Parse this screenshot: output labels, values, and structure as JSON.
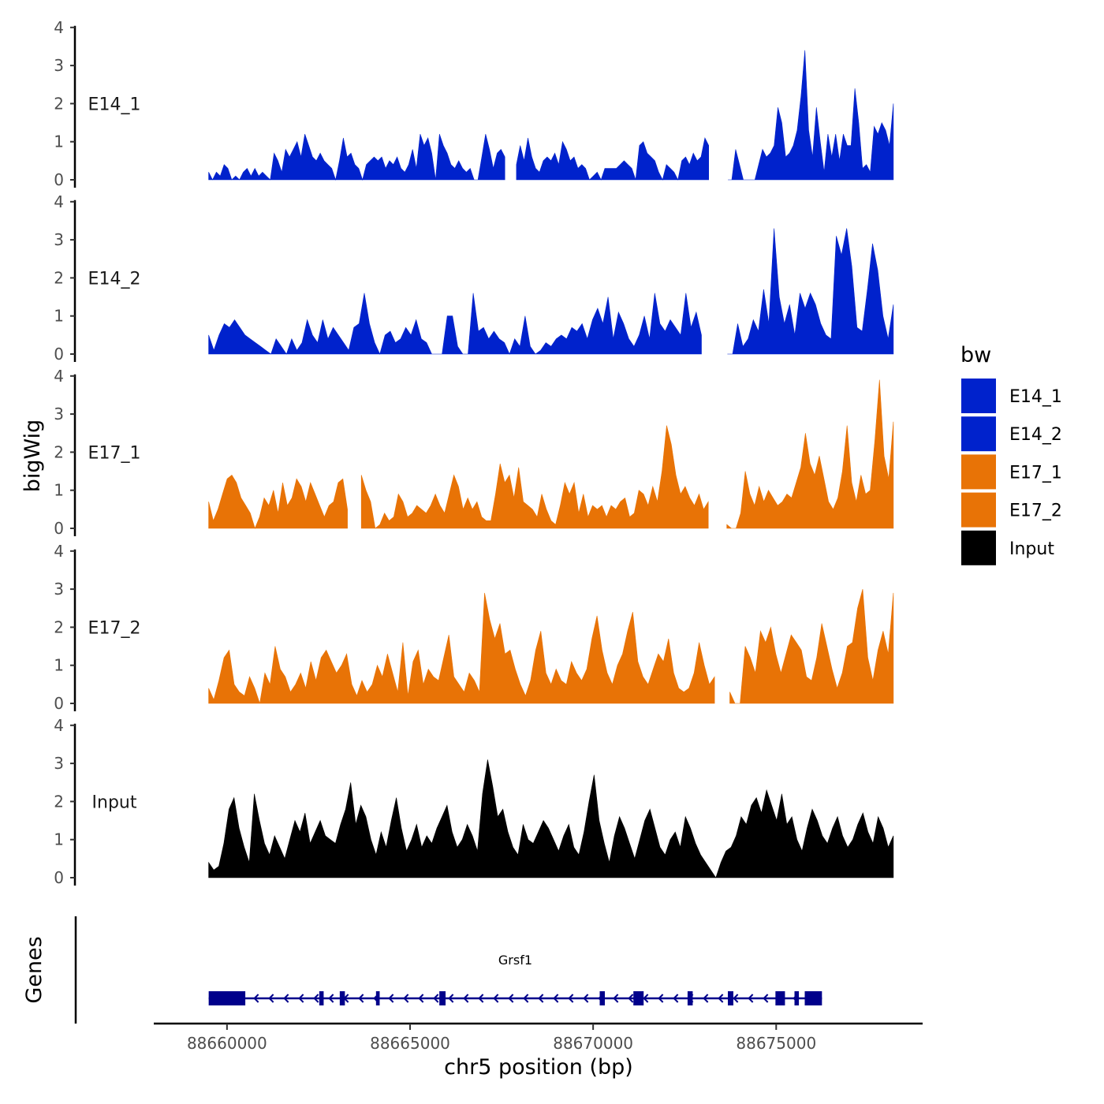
{
  "chart_data": {
    "type": "area",
    "xlabel": "chr5 position (bp)",
    "ylabel": "bigWig",
    "genes_label": "Genes",
    "x_range": [
      88659500,
      88678200
    ],
    "xlim": [
      88658000,
      88679000
    ],
    "x_ticks": [
      {
        "value": 88660000,
        "label": "88660000"
      },
      {
        "value": 88665000,
        "label": "88665000"
      },
      {
        "value": 88670000,
        "label": "88670000"
      },
      {
        "value": 88675000,
        "label": "88675000"
      }
    ],
    "ylim": [
      0,
      4
    ],
    "y_ticks": [
      {
        "value": 0,
        "label": "0"
      },
      {
        "value": 1,
        "label": "1"
      },
      {
        "value": 2,
        "label": "2"
      },
      {
        "value": 3,
        "label": "3"
      },
      {
        "value": 4,
        "label": "4"
      }
    ],
    "legend": {
      "title": "bw",
      "entries": [
        {
          "label": "E14_1",
          "color": "#0022CC"
        },
        {
          "label": "E14_2",
          "color": "#0022CC"
        },
        {
          "label": "E17_1",
          "color": "#E87306"
        },
        {
          "label": "E17_2",
          "color": "#E87306"
        },
        {
          "label": "Input",
          "color": "#000000"
        }
      ]
    },
    "series": [
      {
        "name": "E14_1",
        "color": "#0022CC",
        "values": [
          0.2,
          0,
          0.2,
          0.1,
          0.4,
          0.3,
          0,
          0.1,
          0,
          0.2,
          0.3,
          0.1,
          0.3,
          0.1,
          0.2,
          0.1,
          0,
          0.7,
          0.5,
          0.2,
          0.8,
          0.6,
          0.8,
          1.0,
          0.6,
          1.2,
          0.9,
          0.6,
          0.5,
          0.7,
          0.5,
          0.4,
          0.3,
          0,
          0.5,
          1.1,
          0.6,
          0.7,
          0.4,
          0.3,
          0,
          0.4,
          0.5,
          0.6,
          0.5,
          0.6,
          0.3,
          0.5,
          0.4,
          0.6,
          0.3,
          0.2,
          0.4,
          0.8,
          0.3,
          1.2,
          0.9,
          1.1,
          0.7,
          0,
          1.2,
          0.9,
          0.7,
          0.4,
          0.3,
          0.5,
          0.3,
          0.2,
          0.3,
          0,
          0,
          0.6,
          1.2,
          0.8,
          0.3,
          0.7,
          0.8,
          0.6,
          0.7,
          0.5,
          0.4,
          0.9,
          0.5,
          1.1,
          0.6,
          0.3,
          0.2,
          0.5,
          0.6,
          0.5,
          0.7,
          0.4,
          1.0,
          0.8,
          0.5,
          0.6,
          0.3,
          0.4,
          0.3,
          0,
          0.1,
          0.2,
          0,
          0.3,
          0.3,
          0.3,
          0.3,
          0.4,
          0.5,
          0.4,
          0.3,
          0,
          0.9,
          1.0,
          0.7,
          0.6,
          0.5,
          0.2,
          0,
          0.4,
          0.3,
          0.2,
          0,
          0.5,
          0.6,
          0.4,
          0.7,
          0.5,
          0.6,
          1.1,
          0.9,
          0.6,
          0.5,
          0.7,
          0.3,
          0,
          0,
          0.8,
          0.4,
          0,
          0,
          0,
          0,
          0.4,
          0.8,
          0.6,
          0.7,
          0.9,
          1.9,
          1.5,
          0.6,
          0.7,
          0.9,
          1.3,
          2.2,
          3.4,
          1.3,
          0.6,
          1.9,
          1.0,
          0.2,
          1.2,
          0.6,
          1.2,
          0.5,
          1.2,
          0.9,
          0.9,
          2.4,
          1.5,
          0.3,
          0.4,
          0.2,
          1.4,
          1.2,
          1.5,
          1.3,
          0.9,
          2.0
        ]
      },
      {
        "name": "E14_2",
        "color": "#0022CC",
        "values": [
          0.5,
          0.1,
          0.5,
          0.8,
          0.7,
          0.9,
          0.7,
          0.5,
          0.4,
          0.3,
          0.2,
          0.1,
          0,
          0.4,
          0.2,
          0,
          0.4,
          0.1,
          0.3,
          0.9,
          0.5,
          0.3,
          0.9,
          0.4,
          0.7,
          0.5,
          0.3,
          0.1,
          0.7,
          0.8,
          1.6,
          0.8,
          0.3,
          0,
          0.5,
          0.6,
          0.3,
          0.4,
          0.7,
          0.5,
          0.9,
          0.4,
          0.3,
          0,
          0,
          0,
          1.0,
          1.0,
          0.2,
          0,
          0,
          1.6,
          0.6,
          0.7,
          0.4,
          0.6,
          0.4,
          0.3,
          0,
          0.4,
          0.2,
          1.0,
          0.2,
          0,
          0.1,
          0.3,
          0.2,
          0.4,
          0.5,
          0.4,
          0.7,
          0.6,
          0.8,
          0.4,
          0.9,
          1.2,
          0.8,
          1.5,
          0.4,
          1.1,
          0.8,
          0.4,
          0.2,
          0.5,
          1.0,
          0.4,
          1.6,
          0.8,
          0.6,
          0.9,
          0.7,
          0.5,
          1.6,
          0.7,
          1.1,
          0.5,
          0.8,
          0.3,
          0,
          0,
          0,
          0,
          0.8,
          0.2,
          0.4,
          0.9,
          0.6,
          1.7,
          0.8,
          3.3,
          1.5,
          0.8,
          1.3,
          0.5,
          1.6,
          1.2,
          1.6,
          1.3,
          0.8,
          0.5,
          0.4,
          3.1,
          2.6,
          3.3,
          2.3,
          0.7,
          0.6,
          1.7,
          2.9,
          2.2,
          1.0,
          0.4,
          1.3
        ]
      },
      {
        "name": "E17_1",
        "color": "#E87306",
        "values": [
          0.7,
          0.2,
          0.5,
          0.9,
          1.3,
          1.4,
          1.2,
          0.8,
          0.6,
          0.4,
          0,
          0.3,
          0.8,
          0.6,
          1.0,
          0.4,
          1.2,
          0.6,
          0.8,
          1.3,
          1.1,
          0.7,
          1.2,
          0.9,
          0.6,
          0.3,
          0.6,
          0.7,
          1.2,
          1.3,
          0.5,
          0.6,
          0.7,
          1.4,
          1.0,
          0.7,
          0,
          0.1,
          0.4,
          0.2,
          0.3,
          0.9,
          0.7,
          0.3,
          0.4,
          0.6,
          0.5,
          0.4,
          0.6,
          0.9,
          0.6,
          0.4,
          0.9,
          1.4,
          1.1,
          0.5,
          0.8,
          0.5,
          0.7,
          0.3,
          0.2,
          0.2,
          0.9,
          1.7,
          1.2,
          1.4,
          0.8,
          1.6,
          0.7,
          0.6,
          0.5,
          0.3,
          0.9,
          0.5,
          0.2,
          0.1,
          0.6,
          1.2,
          0.9,
          1.2,
          0.4,
          0.9,
          0.3,
          0.6,
          0.5,
          0.6,
          0.3,
          0.6,
          0.5,
          0.7,
          0.8,
          0.3,
          0.4,
          1.0,
          0.9,
          0.6,
          1.1,
          0.7,
          1.5,
          2.7,
          2.2,
          1.4,
          0.9,
          1.1,
          0.8,
          0.6,
          0.9,
          0.5,
          0.7,
          0.6,
          0.3,
          0.4,
          0.1,
          0,
          0,
          0.4,
          1.5,
          0.9,
          0.6,
          1.1,
          0.7,
          1.0,
          0.8,
          0.6,
          0.7,
          0.9,
          0.8,
          1.2,
          1.6,
          2.5,
          1.7,
          1.4,
          1.9,
          1.3,
          0.7,
          0.5,
          0.8,
          1.5,
          2.7,
          1.2,
          0.7,
          1.4,
          0.9,
          1.0,
          2.3,
          3.9,
          1.9,
          1.3,
          2.8
        ]
      },
      {
        "name": "E17_2",
        "color": "#E87306",
        "values": [
          0.4,
          0.1,
          0.6,
          1.2,
          1.4,
          0.5,
          0.3,
          0.2,
          0.7,
          0.4,
          0,
          0.8,
          0.5,
          1.5,
          0.9,
          0.7,
          0.3,
          0.5,
          0.8,
          0.4,
          1.1,
          0.6,
          1.2,
          1.4,
          1.1,
          0.8,
          1.0,
          1.3,
          0.5,
          0.2,
          0.6,
          0.3,
          0.5,
          1.0,
          0.7,
          1.3,
          0.8,
          0.3,
          1.6,
          0.2,
          1.1,
          1.4,
          0.5,
          0.9,
          0.7,
          0.6,
          1.2,
          1.8,
          0.7,
          0.5,
          0.3,
          0.8,
          0.6,
          0.3,
          2.9,
          2.2,
          1.7,
          2.1,
          1.3,
          1.4,
          0.9,
          0.5,
          0.2,
          0.6,
          1.4,
          1.9,
          0.8,
          0.5,
          0.9,
          0.6,
          0.5,
          1.1,
          0.8,
          0.6,
          0.9,
          1.7,
          2.3,
          1.4,
          0.8,
          0.5,
          1.0,
          1.3,
          1.9,
          2.4,
          1.1,
          0.7,
          0.5,
          0.9,
          1.3,
          1.1,
          1.7,
          0.8,
          0.4,
          0.3,
          0.4,
          0.8,
          1.6,
          1.0,
          0.5,
          0.7,
          0.6,
          0.4,
          0.3,
          0,
          0,
          1.5,
          1.2,
          0.8,
          1.9,
          1.6,
          2.0,
          1.3,
          0.8,
          1.3,
          1.8,
          1.6,
          1.4,
          0.7,
          0.6,
          1.2,
          2.1,
          1.5,
          0.9,
          0.4,
          0.8,
          1.5,
          1.6,
          2.5,
          3.0,
          1.2,
          0.6,
          1.4,
          1.9,
          1.3,
          2.9
        ]
      },
      {
        "name": "Input",
        "color": "#000000",
        "values": [
          0.4,
          0.2,
          0.3,
          0.9,
          1.8,
          2.1,
          1.3,
          0.8,
          0.4,
          2.2,
          1.5,
          0.9,
          0.6,
          1.1,
          0.8,
          0.5,
          1.0,
          1.5,
          1.2,
          1.7,
          0.9,
          1.2,
          1.5,
          1.1,
          1.0,
          0.9,
          1.4,
          1.8,
          2.5,
          1.4,
          1.9,
          1.6,
          1.0,
          0.6,
          1.2,
          0.8,
          1.5,
          2.1,
          1.3,
          0.7,
          1.0,
          1.4,
          0.8,
          1.1,
          0.9,
          1.3,
          1.6,
          1.9,
          1.2,
          0.8,
          1.0,
          1.4,
          1.1,
          0.7,
          2.2,
          3.1,
          2.4,
          1.6,
          1.8,
          1.2,
          0.8,
          0.6,
          1.4,
          1.0,
          0.9,
          1.2,
          1.5,
          1.3,
          1.0,
          0.7,
          1.1,
          1.4,
          0.8,
          0.6,
          1.2,
          2.0,
          2.7,
          1.5,
          0.9,
          0.4,
          1.1,
          1.6,
          1.3,
          0.9,
          0.5,
          1.0,
          1.5,
          1.8,
          1.3,
          0.8,
          0.6,
          1.0,
          1.2,
          0.8,
          1.6,
          1.3,
          0.9,
          0.6,
          0.4,
          0.2,
          0,
          0.4,
          0.7,
          0.8,
          1.1,
          1.6,
          1.4,
          1.9,
          2.1,
          1.7,
          2.3,
          1.9,
          1.5,
          2.2,
          1.4,
          1.6,
          1.0,
          0.7,
          1.3,
          1.8,
          1.5,
          1.1,
          0.9,
          1.3,
          1.6,
          1.1,
          0.8,
          1.0,
          1.4,
          1.7,
          1.2,
          0.9,
          1.6,
          1.3,
          0.8,
          1.1
        ]
      }
    ],
    "gaps": {
      "E14_1": [
        [
          88667650,
          88667800
        ],
        [
          88673200,
          88673650
        ]
      ],
      "E14_2": [
        [
          88673000,
          88673550
        ]
      ],
      "E17_1": [
        [
          88663400,
          88663550
        ],
        [
          88673250,
          88673650
        ]
      ],
      "E17_2": [
        [
          88673350,
          88673650
        ]
      ],
      "Input": []
    },
    "genes": [
      {
        "name": "Grsf1",
        "strand": "-",
        "start": 88659500,
        "end": 88676250,
        "exons": [
          {
            "start": 88659500,
            "end": 88660500
          },
          {
            "start": 88662520,
            "end": 88662640
          },
          {
            "start": 88663080,
            "end": 88663220
          },
          {
            "start": 88664070,
            "end": 88664170
          },
          {
            "start": 88665800,
            "end": 88665970
          },
          {
            "start": 88670180,
            "end": 88670320
          },
          {
            "start": 88671100,
            "end": 88671380
          },
          {
            "start": 88672580,
            "end": 88672720
          },
          {
            "start": 88673680,
            "end": 88673830
          },
          {
            "start": 88674980,
            "end": 88675240
          },
          {
            "start": 88675500,
            "end": 88675620
          },
          {
            "start": 88675780,
            "end": 88676250
          }
        ]
      }
    ]
  }
}
